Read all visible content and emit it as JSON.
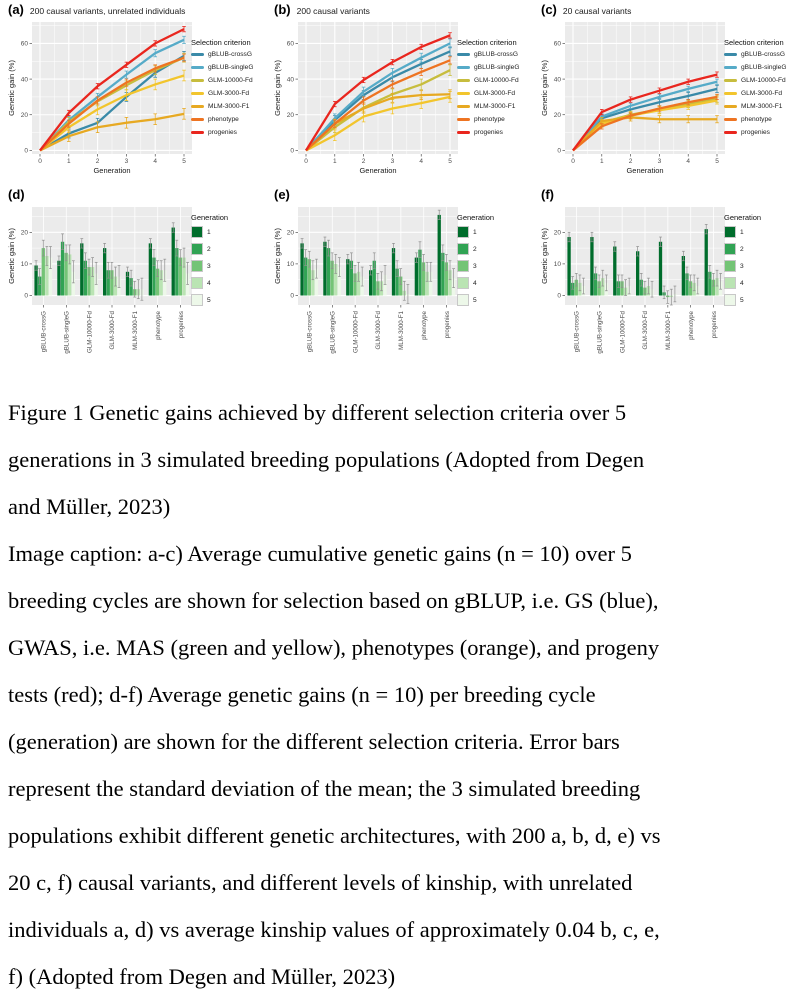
{
  "palette": {
    "plot_bg": "#ebebeb",
    "grid": "#ffffff",
    "axis_text": "#4d4d4d",
    "axis_title": "#1a1a1a",
    "tick": "#333333",
    "error_bar_gray": "#8f8f8f"
  },
  "legend_titles": {
    "selection": "Selection criterion",
    "generation": "Generation"
  },
  "selection_criteria": [
    {
      "name": "gBLUB-crossG",
      "label": "gBLUB-crossG",
      "color": "#3a8aa8"
    },
    {
      "name": "gBLUB-singleG",
      "label": "gBLUB-singleG",
      "color": "#56abc8"
    },
    {
      "name": "GLM-10000-Fd",
      "label": "GLM-10000-Fd",
      "color": "#c7bd3e"
    },
    {
      "name": "GLM-3000-Fd",
      "label": "GLM-3000-Fd",
      "color": "#f2c52d"
    },
    {
      "name": "MLM-3000-F1",
      "label": "MLM-3000-F1",
      "color": "#e7a922"
    },
    {
      "name": "phenotype",
      "label": "phenotype",
      "color": "#ee7422"
    },
    {
      "name": "progenies",
      "label": "progenies",
      "color": "#e9261e"
    }
  ],
  "generation_colors": [
    "#006d2c",
    "#31a354",
    "#74c476",
    "#bae4b3",
    "#edf8e9"
  ],
  "generations": [
    "1",
    "2",
    "3",
    "4",
    "5"
  ],
  "chart_data": [
    {
      "id": "a",
      "type": "line",
      "panel_label": "(a)",
      "title": "200 causal variants, unrelated individuals",
      "xlabel": "Generation",
      "ylabel": "Genetic gain (%)",
      "x": [
        0,
        1,
        2,
        3,
        4,
        5
      ],
      "yticks": [
        0,
        20,
        40,
        60
      ],
      "ylim": [
        -2,
        72
      ],
      "series": [
        {
          "name": "gBLUB-crossG",
          "values": [
            0,
            9.5,
            15.5,
            30,
            43.5,
            53
          ],
          "err": 2.5
        },
        {
          "name": "gBLUB-singleG",
          "values": [
            0,
            17,
            30,
            42.5,
            54.5,
            62
          ],
          "err": 2
        },
        {
          "name": "GLM-10000-Fd",
          "values": [
            0,
            16,
            27.5,
            36.5,
            45,
            52
          ],
          "err": 2.5
        },
        {
          "name": "GLM-3000-Fd",
          "values": [
            0,
            13,
            23,
            31,
            37,
            42
          ],
          "err": 3
        },
        {
          "name": "MLM-3000-F1",
          "values": [
            0,
            8,
            13,
            15.5,
            17.5,
            20.5
          ],
          "err": 3
        },
        {
          "name": "phenotype",
          "values": [
            0,
            15,
            28,
            38,
            46,
            52
          ],
          "err": 2
        },
        {
          "name": "progenies",
          "values": [
            0,
            21,
            36,
            48,
            60,
            68
          ],
          "err": 1.5
        }
      ]
    },
    {
      "id": "b",
      "type": "line",
      "panel_label": "(b)",
      "title": "200 causal variants",
      "xlabel": "Generation",
      "ylabel": "Genetic gain (%)",
      "x": [
        0,
        1,
        2,
        3,
        4,
        5
      ],
      "yticks": [
        0,
        20,
        40,
        60
      ],
      "ylim": [
        -2,
        72
      ],
      "series": [
        {
          "name": "gBLUB-crossG",
          "values": [
            0,
            17,
            31,
            41,
            48.5,
            55.5
          ],
          "err": 2.5
        },
        {
          "name": "gBLUB-singleG",
          "values": [
            0,
            18,
            33,
            43.5,
            52,
            60
          ],
          "err": 2.5
        },
        {
          "name": "GLM-10000-Fd",
          "values": [
            0,
            13,
            24,
            31.5,
            37,
            45
          ],
          "err": 3
        },
        {
          "name": "GLM-3000-Fd",
          "values": [
            0,
            8.5,
            19,
            23.5,
            26.5,
            30
          ],
          "err": 3
        },
        {
          "name": "MLM-3000-F1",
          "values": [
            0,
            15,
            23.5,
            29.5,
            31,
            31.5
          ],
          "err": 2.5
        },
        {
          "name": "phenotype",
          "values": [
            0,
            15,
            28,
            37,
            44,
            50.5
          ],
          "err": 2
        },
        {
          "name": "progenies",
          "values": [
            0,
            26,
            39.5,
            49.5,
            58,
            64.5
          ],
          "err": 1.5
        }
      ]
    },
    {
      "id": "c",
      "type": "line",
      "panel_label": "(c)",
      "title": "20 causal variants",
      "xlabel": "Generation",
      "ylabel": "Genetic gain (%)",
      "x": [
        0,
        1,
        2,
        3,
        4,
        5
      ],
      "yticks": [
        0,
        20,
        40,
        60
      ],
      "ylim": [
        -2,
        72
      ],
      "series": [
        {
          "name": "gBLUB-crossG",
          "values": [
            0,
            18,
            23,
            27,
            30.5,
            34.5
          ],
          "err": 2
        },
        {
          "name": "gBLUB-singleG",
          "values": [
            0,
            19,
            25,
            30,
            34.5,
            38.5
          ],
          "err": 1.5
        },
        {
          "name": "GLM-10000-Fd",
          "values": [
            0,
            15.5,
            20,
            23,
            26,
            29
          ],
          "err": 2
        },
        {
          "name": "GLM-3000-Fd",
          "values": [
            0,
            15,
            19.5,
            22.5,
            25,
            28
          ],
          "err": 2
        },
        {
          "name": "MLM-3000-F1",
          "values": [
            0,
            16.5,
            18.5,
            17.5,
            17.5,
            17.5
          ],
          "err": 2
        },
        {
          "name": "phenotype",
          "values": [
            0,
            13.5,
            19.5,
            23.5,
            27,
            30
          ],
          "err": 1.5
        },
        {
          "name": "progenies",
          "values": [
            0,
            21.5,
            28.5,
            33.5,
            38.5,
            42.5
          ],
          "err": 1.5
        }
      ]
    },
    {
      "id": "d",
      "type": "bar",
      "panel_label": "(d)",
      "ylabel": "Genetic gain (%)",
      "categories": [
        "gBLUB-crossG",
        "gBLUB-singleG",
        "GLM-10000-Fd",
        "GLM-3000-Fd",
        "MLM-3000-F1",
        "phenotype",
        "progenies"
      ],
      "yticks": [
        0,
        10,
        20
      ],
      "ylim": [
        -3,
        28
      ],
      "series": [
        {
          "generation": "1",
          "values": [
            9.5,
            11,
            16.5,
            15,
            7.5,
            16.5,
            21.5
          ],
          "err": 1.5
        },
        {
          "generation": "2",
          "values": [
            6,
            17,
            11,
            8,
            5.5,
            12,
            15
          ],
          "err": 2.5
        },
        {
          "generation": "3",
          "values": [
            15,
            13.5,
            9,
            8,
            2,
            8.5,
            12
          ],
          "err": 2.5
        },
        {
          "generation": "4",
          "values": [
            12.5,
            13,
            9,
            6,
            2,
            8,
            12
          ],
          "err": 3
        },
        {
          "generation": "5",
          "values": [
            12,
            7.5,
            7,
            6,
            2,
            8,
            7
          ],
          "err": 3.5
        }
      ]
    },
    {
      "id": "e",
      "type": "bar",
      "panel_label": "(e)",
      "ylabel": "Genetic gain (%)",
      "categories": [
        "gBLUB-crossG",
        "gBLUB-singleG",
        "GLM-10000-Fd",
        "GLM-3000-Fd",
        "MLM-3000-F1",
        "phenotype",
        "progenies"
      ],
      "yticks": [
        0,
        10,
        20
      ],
      "ylim": [
        -3,
        28
      ],
      "series": [
        {
          "generation": "1",
          "values": [
            16.5,
            17,
            11.5,
            8,
            15,
            12,
            25.5
          ],
          "err": 1.5
        },
        {
          "generation": "2",
          "values": [
            12,
            15,
            11,
            11,
            8.5,
            14.5,
            13.5
          ],
          "err": 2.5
        },
        {
          "generation": "3",
          "values": [
            11.5,
            11,
            7,
            4.5,
            6,
            10.5,
            10.5
          ],
          "err": 2.5
        },
        {
          "generation": "4",
          "values": [
            8,
            10,
            7.5,
            4.5,
            1.5,
            7.5,
            8
          ],
          "err": 3
        },
        {
          "generation": "5",
          "values": [
            8.5,
            9,
            6,
            6.5,
            0.5,
            7.5,
            5.5
          ],
          "err": 3
        }
      ]
    },
    {
      "id": "f",
      "type": "bar",
      "panel_label": "(f)",
      "ylabel": "Genetic gain (%)",
      "categories": [
        "gBLUB-crossG",
        "gBLUB-singleG",
        "GLM-10000-Fd",
        "GLM-3000-Fd",
        "MLM-3000-F1",
        "phenotype",
        "progenies"
      ],
      "yticks": [
        0,
        10,
        20
      ],
      "ylim": [
        -3,
        28
      ],
      "series": [
        {
          "generation": "1",
          "values": [
            18.5,
            18.5,
            15.5,
            14,
            17,
            12.5,
            21
          ],
          "err": 1.5
        },
        {
          "generation": "2",
          "values": [
            4,
            7,
            4.5,
            5,
            1,
            7,
            7.5
          ],
          "err": 2
        },
        {
          "generation": "3",
          "values": [
            5,
            4.5,
            4.5,
            2.5,
            -0.5,
            4.5,
            5
          ],
          "err": 2
        },
        {
          "generation": "4",
          "values": [
            4,
            5.5,
            2.5,
            3,
            -0.5,
            4,
            5.5
          ],
          "err": 2.5
        },
        {
          "generation": "5",
          "values": [
            3,
            4,
            3,
            2,
            0.5,
            3,
            4.5
          ],
          "err": 2.5
        }
      ]
    }
  ],
  "caption_lines": [
    "Figure 1 Genetic gains achieved by different selection criteria over 5",
    "generations in 3 simulated breeding populations (Adopted from Degen",
    "and Müller, 2023)",
    "Image caption: a-c) Average cumulative genetic gains (n = 10) over 5",
    "breeding cycles are shown for selection based on gBLUP, i.e. GS (blue),",
    "GWAS, i.e. MAS (green and yellow), phenotypes (orange), and progeny",
    "tests (red); d-f) Average genetic gains (n = 10) per breeding cycle",
    "(generation) are shown for the different selection criteria. Error bars",
    "represent the standard deviation of the mean; the 3 simulated breeding",
    "populations exhibit different genetic architectures, with 200 a, b, d, e) vs",
    "20 c, f) causal variants, and different levels of kinship, with unrelated",
    "individuals a, d) vs average kinship values of approximately 0.04 b, c, e,",
    "f) (Adopted from Degen and Müller, 2023)"
  ]
}
